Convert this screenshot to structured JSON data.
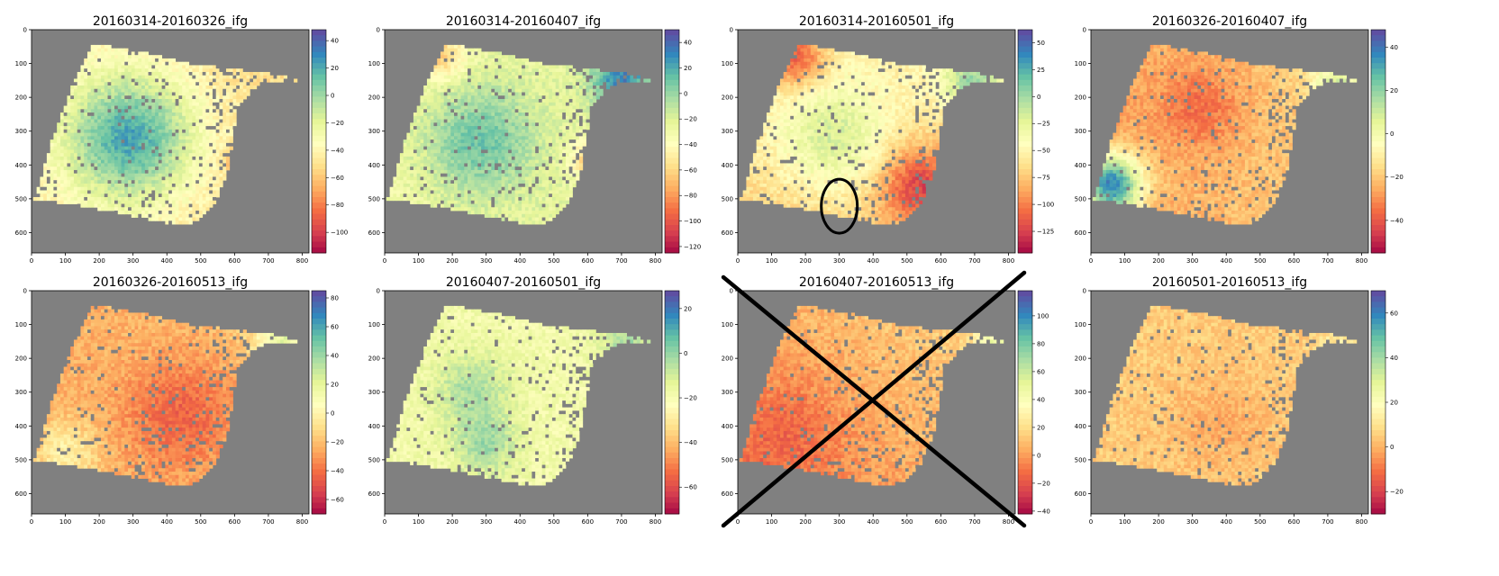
{
  "figure": {
    "colormap": [
      "#9e0142",
      "#d53e4f",
      "#f46d43",
      "#fdae61",
      "#fee08b",
      "#ffffbf",
      "#e6f598",
      "#abdda4",
      "#66c2a5",
      "#3288bd",
      "#5e4fa2"
    ],
    "background_color": "#808080",
    "nodata_color": "#808080",
    "annotation_color": "#000000"
  },
  "chart_data": [
    {
      "type": "heatmap",
      "title": "20160314-20160326_ifg",
      "xlim": [
        0,
        820
      ],
      "ylim": [
        0,
        660
      ],
      "x_ticks": [
        "0",
        "100",
        "200",
        "300",
        "400",
        "500",
        "600",
        "700",
        "800"
      ],
      "y_ticks": [
        "0",
        "100",
        "200",
        "300",
        "400",
        "500",
        "600"
      ],
      "colorbar": {
        "range": [
          -115,
          48
        ],
        "ticks": [
          "40",
          "20",
          "0",
          "−20",
          "−40",
          "−60",
          "−80",
          "−100"
        ]
      },
      "pattern": {
        "base": 0.45,
        "grad_x": -0.05,
        "grad_y": 0.0,
        "blobs": [
          {
            "x": 290,
            "y": 320,
            "r": 190,
            "v": 0.42
          },
          {
            "x": 620,
            "y": 390,
            "r": 40,
            "v": -0.25
          }
        ]
      },
      "annotation": null
    },
    {
      "type": "heatmap",
      "title": "20160314-20160407_ifg",
      "xlim": [
        0,
        820
      ],
      "ylim": [
        0,
        660
      ],
      "x_ticks": [
        "0",
        "100",
        "200",
        "300",
        "400",
        "500",
        "600",
        "700",
        "800"
      ],
      "y_ticks": [
        "0",
        "100",
        "200",
        "300",
        "400",
        "500",
        "600"
      ],
      "colorbar": {
        "range": [
          -125,
          50
        ],
        "ticks": [
          "40",
          "20",
          "0",
          "−20",
          "−40",
          "−60",
          "−80",
          "−100",
          "−120"
        ]
      },
      "pattern": {
        "base": 0.55,
        "grad_x": 0.05,
        "grad_y": 0.0,
        "blobs": [
          {
            "x": 280,
            "y": 330,
            "r": 170,
            "v": 0.22
          },
          {
            "x": 700,
            "y": 150,
            "r": 90,
            "v": 0.32
          },
          {
            "x": 170,
            "y": 80,
            "r": 70,
            "v": -0.2
          },
          {
            "x": 610,
            "y": 380,
            "r": 60,
            "v": -0.25
          }
        ]
      },
      "annotation": null
    },
    {
      "type": "heatmap",
      "title": "20160314-20160501_ifg",
      "xlim": [
        0,
        820
      ],
      "ylim": [
        0,
        660
      ],
      "x_ticks": [
        "0",
        "100",
        "200",
        "300",
        "400",
        "500",
        "600",
        "700",
        "800"
      ],
      "y_ticks": [
        "0",
        "100",
        "200",
        "300",
        "400",
        "500",
        "600"
      ],
      "colorbar": {
        "range": [
          -145,
          62
        ],
        "ticks": [
          "50",
          "25",
          "0",
          "−25",
          "−50",
          "−75",
          "−100",
          "−125"
        ]
      },
      "pattern": {
        "base": 0.48,
        "grad_x": 0.0,
        "grad_y": -0.12,
        "blobs": [
          {
            "x": 280,
            "y": 320,
            "r": 160,
            "v": 0.2
          },
          {
            "x": 700,
            "y": 160,
            "r": 90,
            "v": 0.28
          },
          {
            "x": 170,
            "y": 80,
            "r": 90,
            "v": -0.3
          },
          {
            "x": 540,
            "y": 460,
            "r": 120,
            "v": -0.28
          }
        ]
      },
      "annotation": "ellipse"
    },
    {
      "type": "heatmap",
      "title": "20160326-20160407_ifg",
      "xlim": [
        0,
        820
      ],
      "ylim": [
        0,
        660
      ],
      "x_ticks": [
        "0",
        "100",
        "200",
        "300",
        "400",
        "500",
        "600",
        "700",
        "800"
      ],
      "y_ticks": [
        "0",
        "100",
        "200",
        "300",
        "400",
        "500",
        "600"
      ],
      "colorbar": {
        "range": [
          -55,
          48
        ],
        "ticks": [
          "40",
          "20",
          "0",
          "−20",
          "−40"
        ]
      },
      "pattern": {
        "base": 0.28,
        "grad_x": 0.1,
        "grad_y": 0.0,
        "blobs": [
          {
            "x": 60,
            "y": 460,
            "r": 90,
            "v": 0.62
          },
          {
            "x": 330,
            "y": 230,
            "r": 120,
            "v": -0.12
          },
          {
            "x": 730,
            "y": 160,
            "r": 80,
            "v": 0.25
          }
        ]
      },
      "annotation": null
    },
    {
      "type": "heatmap",
      "title": "20160326-20160513_ifg",
      "xlim": [
        0,
        820
      ],
      "ylim": [
        0,
        660
      ],
      "x_ticks": [
        "0",
        "100",
        "200",
        "300",
        "400",
        "500",
        "600",
        "700",
        "800"
      ],
      "y_ticks": [
        "0",
        "100",
        "200",
        "300",
        "400",
        "500",
        "600"
      ],
      "colorbar": {
        "range": [
          -70,
          85
        ],
        "ticks": [
          "80",
          "60",
          "40",
          "20",
          "0",
          "−20",
          "−40",
          "−60"
        ]
      },
      "pattern": {
        "base": 0.3,
        "grad_x": 0.05,
        "grad_y": 0.0,
        "blobs": [
          {
            "x": 450,
            "y": 370,
            "r": 170,
            "v": -0.15
          },
          {
            "x": 740,
            "y": 150,
            "r": 80,
            "v": 0.25
          },
          {
            "x": 100,
            "y": 480,
            "r": 100,
            "v": 0.15
          }
        ]
      },
      "annotation": null
    },
    {
      "type": "heatmap",
      "title": "20160407-20160501_ifg",
      "xlim": [
        0,
        820
      ],
      "ylim": [
        0,
        660
      ],
      "x_ticks": [
        "0",
        "100",
        "200",
        "300",
        "400",
        "500",
        "600",
        "700",
        "800"
      ],
      "y_ticks": [
        "0",
        "100",
        "200",
        "300",
        "400",
        "500",
        "600"
      ],
      "colorbar": {
        "range": [
          -72,
          28
        ],
        "ticks": [
          "20",
          "0",
          "−20",
          "−40",
          "−60"
        ]
      },
      "pattern": {
        "base": 0.55,
        "grad_x": 0.0,
        "grad_y": 0.0,
        "blobs": [
          {
            "x": 260,
            "y": 300,
            "r": 110,
            "v": 0.15
          },
          {
            "x": 300,
            "y": 460,
            "r": 90,
            "v": 0.15
          },
          {
            "x": 720,
            "y": 150,
            "r": 80,
            "v": 0.15
          }
        ]
      },
      "annotation": null
    },
    {
      "type": "heatmap",
      "title": "20160407-20160513_ifg",
      "xlim": [
        0,
        820
      ],
      "ylim": [
        0,
        660
      ],
      "x_ticks": [
        "0",
        "100",
        "200",
        "300",
        "400",
        "500",
        "600",
        "700",
        "800"
      ],
      "y_ticks": [
        "0",
        "100",
        "200",
        "300",
        "400",
        "500",
        "600"
      ],
      "colorbar": {
        "range": [
          -42,
          118
        ],
        "ticks": [
          "100",
          "80",
          "60",
          "40",
          "20",
          "0",
          "−20",
          "−40"
        ]
      },
      "pattern": {
        "base": 0.3,
        "grad_x": 0.1,
        "grad_y": -0.08,
        "blobs": [
          {
            "x": 150,
            "y": 420,
            "r": 170,
            "v": -0.08
          },
          {
            "x": 760,
            "y": 160,
            "r": 60,
            "v": 0.2
          }
        ]
      },
      "annotation": "cross"
    },
    {
      "type": "heatmap",
      "title": "20160501-20160513_ifg",
      "xlim": [
        0,
        820
      ],
      "ylim": [
        0,
        660
      ],
      "x_ticks": [
        "0",
        "100",
        "200",
        "300",
        "400",
        "500",
        "600",
        "700",
        "800"
      ],
      "y_ticks": [
        "0",
        "100",
        "200",
        "300",
        "400",
        "500",
        "600"
      ],
      "colorbar": {
        "range": [
          -30,
          70
        ],
        "ticks": [
          "60",
          "40",
          "20",
          "0",
          "−20"
        ]
      },
      "pattern": {
        "base": 0.36,
        "grad_x": 0.0,
        "grad_y": 0.0,
        "blobs": [
          {
            "x": 380,
            "y": 400,
            "r": 150,
            "v": -0.06
          },
          {
            "x": 740,
            "y": 150,
            "r": 70,
            "v": 0.08
          }
        ]
      },
      "annotation": null
    }
  ]
}
